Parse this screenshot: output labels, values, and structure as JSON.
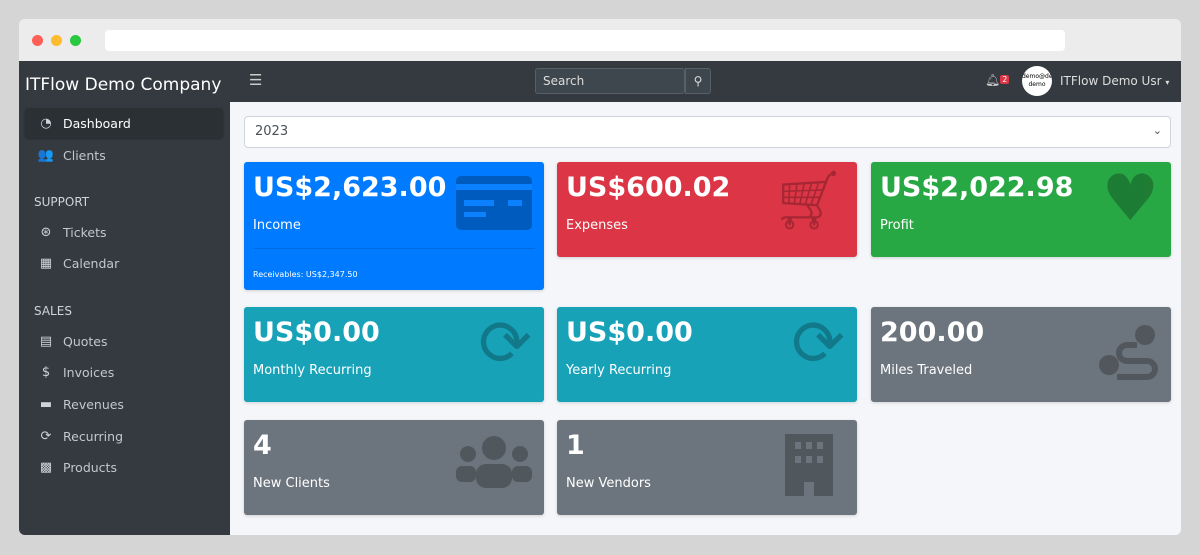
{
  "sidebar": {
    "brand": "ITFlow Demo Company",
    "items": [
      {
        "label": "Dashboard",
        "icon": "tachometer-icon"
      },
      {
        "label": "Clients",
        "icon": "users-icon"
      }
    ],
    "support_header": "SUPPORT",
    "support": [
      {
        "label": "Tickets",
        "icon": "life-ring-icon"
      },
      {
        "label": "Calendar",
        "icon": "calendar-icon"
      }
    ],
    "sales_header": "SALES",
    "sales": [
      {
        "label": "Quotes",
        "icon": "file-icon"
      },
      {
        "label": "Invoices",
        "icon": "invoice-icon"
      },
      {
        "label": "Revenues",
        "icon": "credit-card-icon"
      },
      {
        "label": "Recurring",
        "icon": "sync-icon"
      },
      {
        "label": "Products",
        "icon": "box-icon"
      }
    ]
  },
  "topbar": {
    "search_placeholder": "Search",
    "notification_count": "2",
    "avatar_text": "demo@demo demo",
    "user": "ITFlow Demo Usr"
  },
  "year": "2023",
  "cards": [
    {
      "value": "US$2,623.00",
      "label": "Income",
      "footer": "Receivables: US$2,347.50",
      "color": "#007bff"
    },
    {
      "value": "US$600.02",
      "label": "Expenses",
      "color": "#dc3545"
    },
    {
      "value": "US$2,022.98",
      "label": "Profit",
      "color": "#28a745"
    },
    {
      "value": "US$0.00",
      "label": "Monthly Recurring",
      "color": "#17a2b8"
    },
    {
      "value": "US$0.00",
      "label": "Yearly Recurring",
      "color": "#17a2b8"
    },
    {
      "value": "200.00",
      "label": "Miles Traveled",
      "color": "#6c757d"
    },
    {
      "value": "4",
      "label": "New Clients",
      "color": "#6c757d"
    },
    {
      "value": "1",
      "label": "New Vendors",
      "color": "#6c757d"
    }
  ]
}
